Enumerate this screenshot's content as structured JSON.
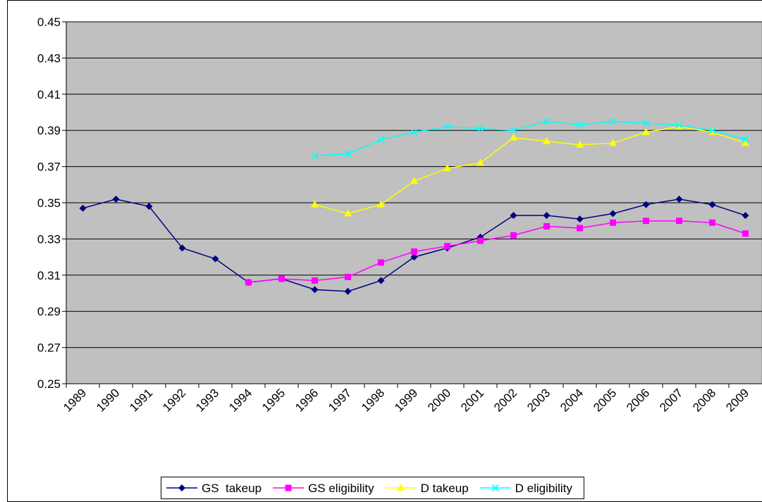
{
  "chart_data": {
    "type": "line",
    "categories": [
      "1989",
      "1990",
      "1991",
      "1992",
      "1993",
      "1994",
      "1995",
      "1996",
      "1997",
      "1998",
      "1999",
      "2000",
      "2001",
      "2002",
      "2003",
      "2004",
      "2005",
      "2006",
      "2007",
      "2008",
      "2009"
    ],
    "ylim": [
      0.25,
      0.45
    ],
    "yticks": [
      0.25,
      0.27,
      0.29,
      0.31,
      0.33,
      0.35,
      0.37,
      0.39,
      0.41,
      0.43,
      0.45
    ],
    "grid": true,
    "legend": "bottom",
    "series": [
      {
        "name": "GS  takeup",
        "color": "#000080",
        "marker": "diamond",
        "values": [
          0.347,
          0.352,
          0.348,
          0.325,
          0.319,
          0.306,
          0.308,
          0.302,
          0.301,
          0.307,
          0.32,
          0.325,
          0.331,
          0.343,
          0.343,
          0.341,
          0.344,
          0.349,
          0.352,
          0.349,
          0.343
        ]
      },
      {
        "name": "GS eligibility",
        "color": "#ff00ff",
        "marker": "square",
        "values": [
          null,
          null,
          null,
          null,
          null,
          0.306,
          0.308,
          0.307,
          0.309,
          0.317,
          0.323,
          0.326,
          0.329,
          0.332,
          0.337,
          0.336,
          0.339,
          0.34,
          0.34,
          0.339,
          0.333
        ]
      },
      {
        "name": "D takeup",
        "color": "#ffff00",
        "marker": "triangle",
        "values": [
          null,
          null,
          null,
          null,
          null,
          null,
          null,
          0.349,
          0.344,
          0.349,
          0.362,
          0.369,
          0.372,
          0.386,
          0.384,
          0.382,
          0.383,
          0.389,
          0.392,
          0.389,
          0.383
        ]
      },
      {
        "name": "D eligibility",
        "color": "#00ffff",
        "marker": "x",
        "values": [
          null,
          null,
          null,
          null,
          null,
          null,
          null,
          0.376,
          0.377,
          0.385,
          0.389,
          0.392,
          0.391,
          0.39,
          0.395,
          0.393,
          0.395,
          0.394,
          0.393,
          0.39,
          0.385
        ]
      }
    ]
  }
}
